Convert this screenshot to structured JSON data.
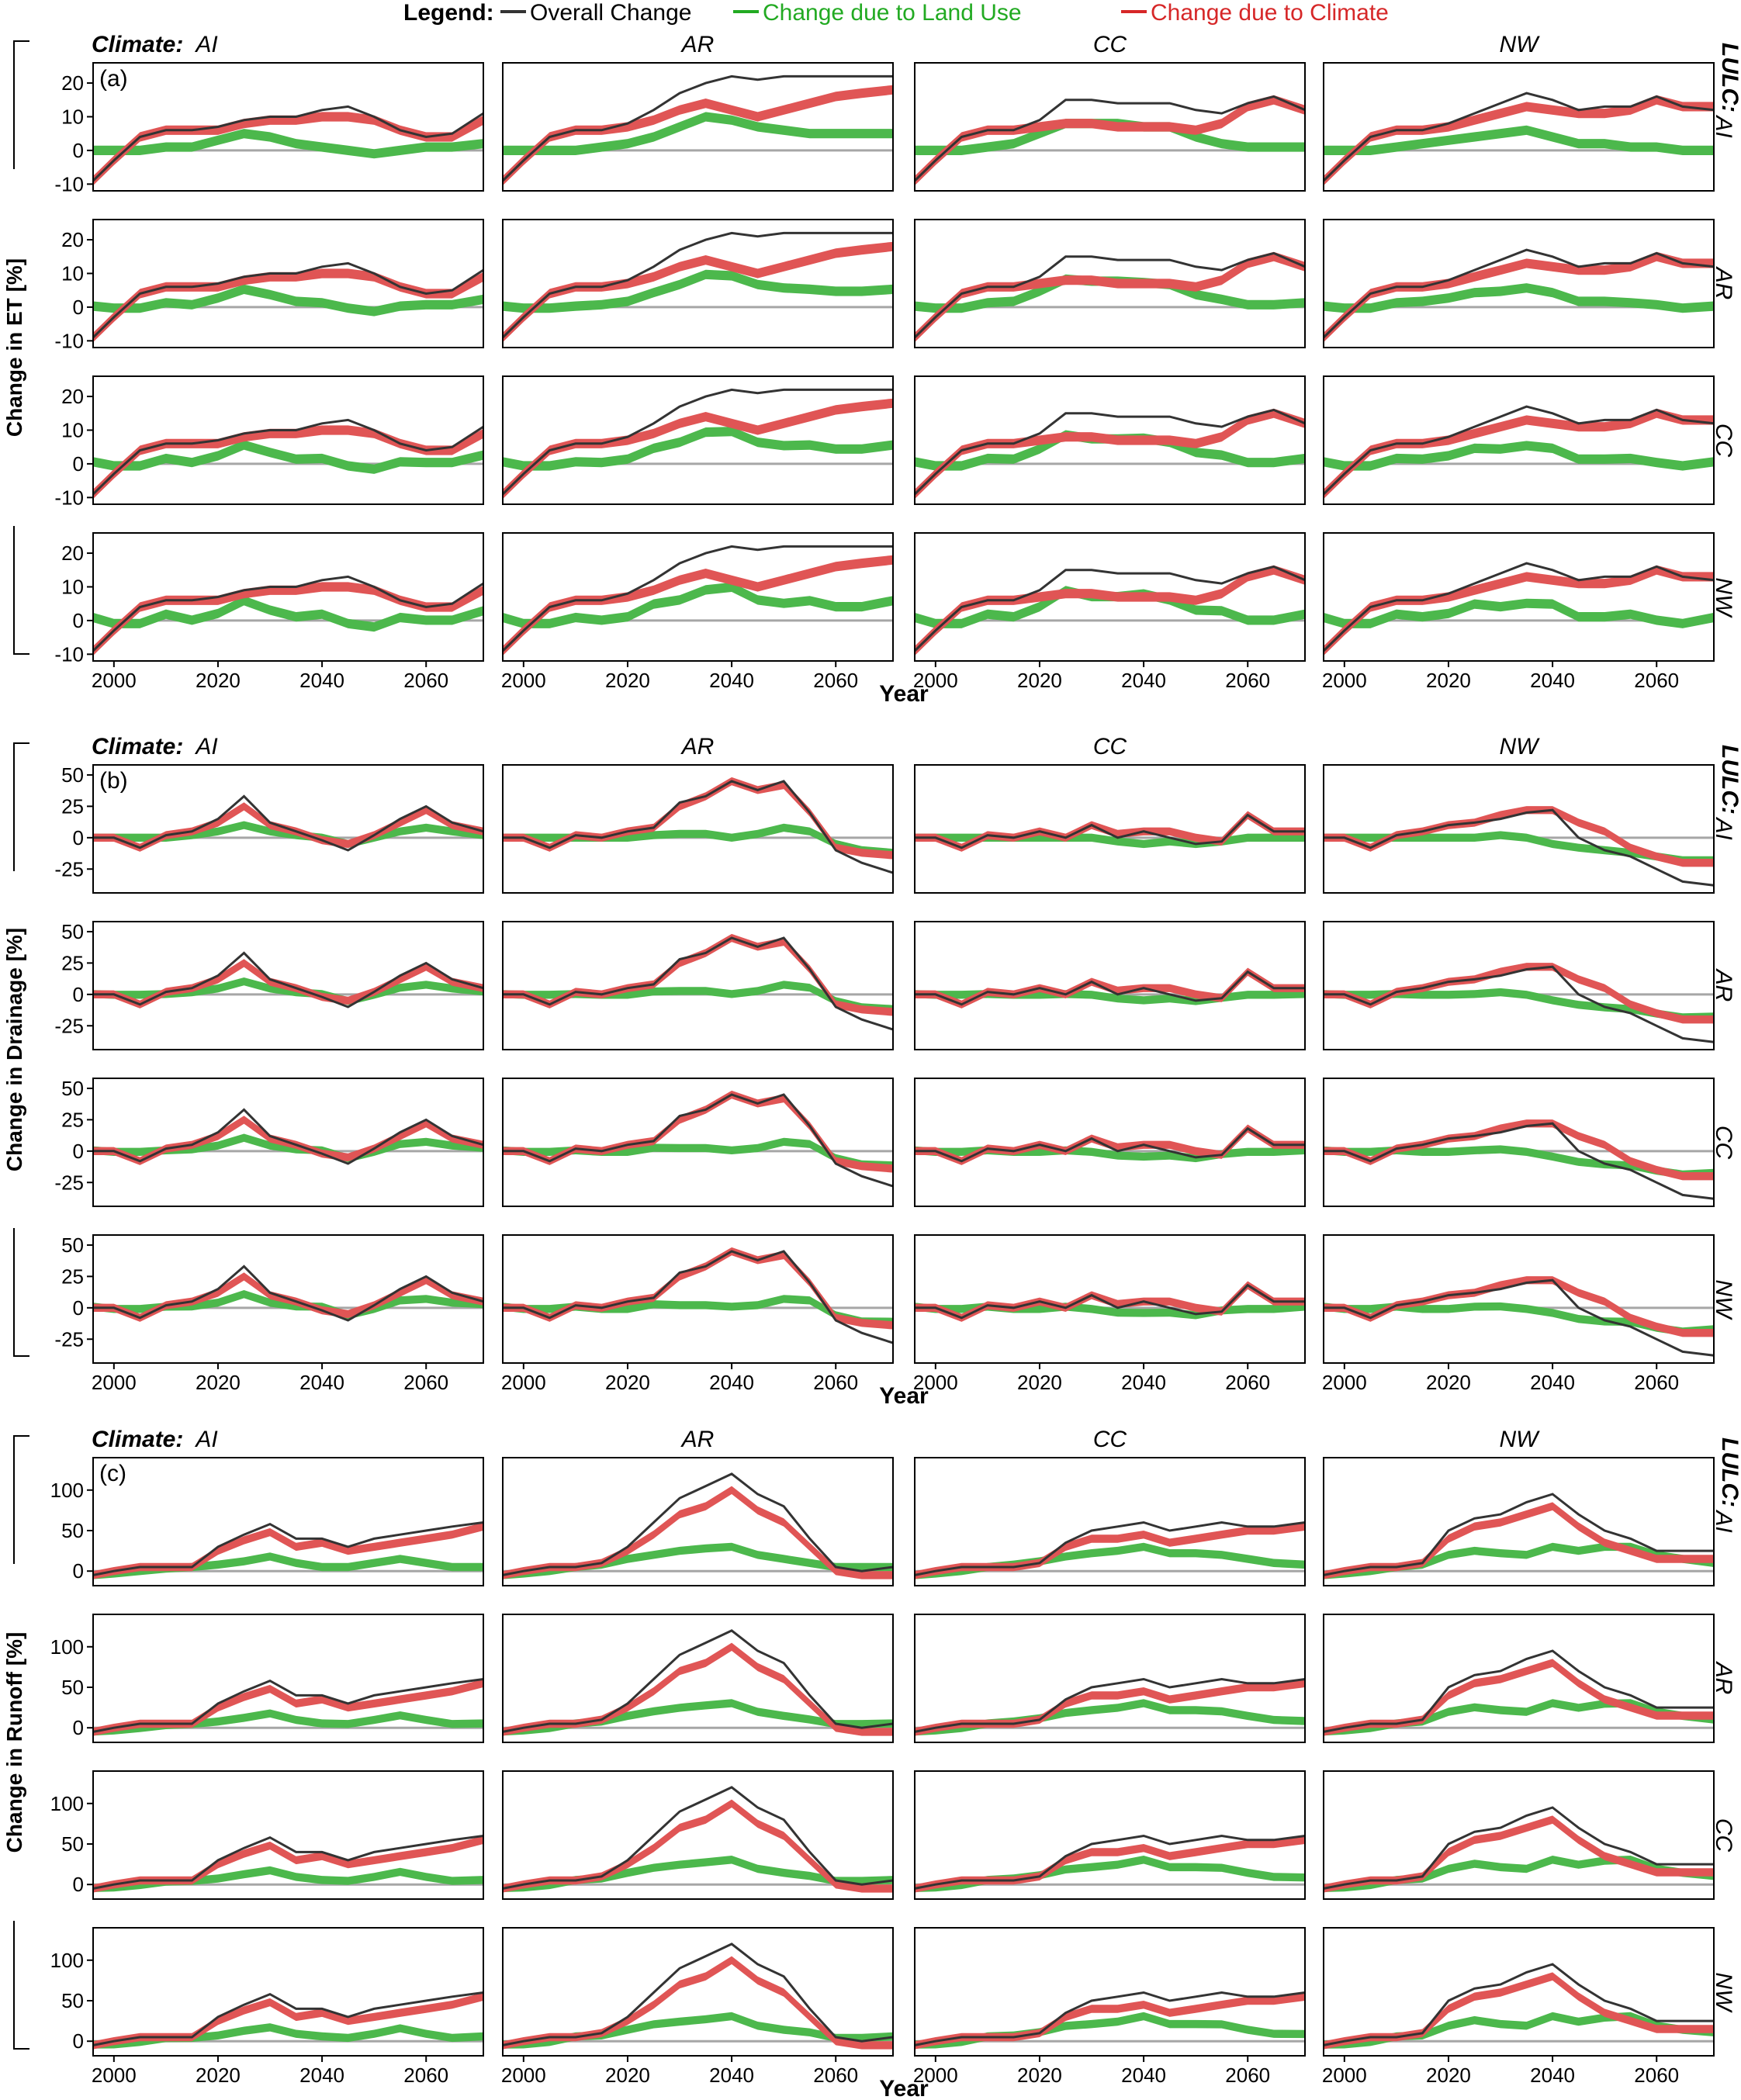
{
  "legend": {
    "title": "Legend:",
    "items": [
      {
        "label": "Overall Change",
        "color": "#333333"
      },
      {
        "label": "Change due to Land Use",
        "color": "#22aa22"
      },
      {
        "label": "Change due to Climate",
        "color": "#d62728"
      }
    ],
    "label_colors": [
      "#000000",
      "#22aa22",
      "#d62728"
    ]
  },
  "climate_prefix": "Climate:",
  "lulc_prefix": "LULC:",
  "climate_scenarios": [
    "AI",
    "AR",
    "CC",
    "NW"
  ],
  "lulc_scenarios": [
    "AI",
    "AR",
    "CC",
    "NW"
  ],
  "xlabel": "Year",
  "xticks": [
    2000,
    2020,
    2040,
    2060
  ],
  "xlim": [
    1996,
    2071
  ],
  "colors": {
    "overall": "#333333",
    "landuse": "#4cb84c",
    "climate": "#e05555",
    "zero": "#a6a6a6"
  },
  "chart_data": [
    {
      "type": "line",
      "tag": "(a)",
      "ylabel": "Change in ET [%]",
      "ylim": [
        -12,
        26
      ],
      "yticks": [
        -10,
        0,
        10,
        20
      ],
      "x": [
        1996,
        2000,
        2005,
        2010,
        2015,
        2020,
        2025,
        2030,
        2035,
        2040,
        2045,
        2050,
        2055,
        2060,
        2065,
        2071
      ],
      "overall": {
        "AI": [
          -9,
          -3,
          4,
          6,
          6,
          7,
          9,
          10,
          10,
          12,
          13,
          10,
          6,
          4,
          5,
          11
        ],
        "AR": [
          -9,
          -3,
          4,
          6,
          6,
          8,
          12,
          17,
          20,
          22,
          21,
          22,
          22,
          22,
          22,
          22
        ],
        "CC": [
          -9,
          -3,
          4,
          6,
          6,
          9,
          15,
          15,
          14,
          14,
          14,
          12,
          11,
          14,
          16,
          12
        ],
        "NW": [
          -9,
          -3,
          4,
          6,
          6,
          8,
          11,
          14,
          17,
          15,
          12,
          13,
          13,
          16,
          13,
          12
        ]
      },
      "climate": {
        "AI": [
          -9,
          -3,
          4,
          6,
          6,
          6,
          8,
          9,
          9,
          10,
          10,
          9,
          6,
          4,
          4,
          9
        ],
        "AR": [
          -9,
          -3,
          4,
          6,
          6,
          7,
          9,
          12,
          14,
          12,
          10,
          12,
          14,
          16,
          17,
          18
        ],
        "CC": [
          -9,
          -3,
          4,
          6,
          6,
          7,
          8,
          8,
          7,
          7,
          7,
          6,
          8,
          13,
          15,
          12
        ],
        "NW": [
          -9,
          -3,
          4,
          6,
          6,
          7,
          9,
          11,
          13,
          12,
          11,
          11,
          12,
          15,
          13,
          13
        ]
      },
      "landuse": {
        "AI": [
          0,
          0,
          0,
          1,
          1,
          3,
          5,
          4,
          2,
          1,
          0,
          -1,
          0,
          1,
          1,
          2
        ],
        "AR": [
          0,
          0,
          0,
          0,
          1,
          2,
          4,
          7,
          10,
          9,
          7,
          6,
          5,
          5,
          5,
          5
        ],
        "CC": [
          0,
          0,
          0,
          1,
          2,
          5,
          8,
          8,
          8,
          7,
          7,
          4,
          2,
          1,
          1,
          1
        ],
        "NW": [
          0,
          0,
          0,
          1,
          2,
          3,
          4,
          5,
          6,
          4,
          2,
          2,
          1,
          1,
          0,
          0
        ]
      },
      "band_width": 1.4
    },
    {
      "type": "line",
      "tag": "(b)",
      "ylabel": "Change in Drainage [%]",
      "ylim": [
        -44,
        58
      ],
      "yticks": [
        -25,
        0,
        25,
        50
      ],
      "x": [
        1996,
        2000,
        2005,
        2010,
        2015,
        2020,
        2025,
        2030,
        2035,
        2040,
        2045,
        2050,
        2055,
        2060,
        2065,
        2071
      ],
      "overall": {
        "AI": [
          0,
          0,
          -8,
          2,
          5,
          15,
          33,
          12,
          5,
          -2,
          -10,
          2,
          15,
          25,
          12,
          5
        ],
        "AR": [
          0,
          0,
          -8,
          2,
          0,
          5,
          8,
          28,
          33,
          45,
          38,
          45,
          20,
          -10,
          -20,
          -28
        ],
        "CC": [
          0,
          0,
          -8,
          2,
          0,
          5,
          0,
          10,
          0,
          5,
          0,
          -5,
          -3,
          18,
          5,
          5
        ],
        "NW": [
          0,
          0,
          -8,
          2,
          5,
          10,
          12,
          15,
          20,
          22,
          0,
          -10,
          -15,
          -25,
          -35,
          -38
        ]
      },
      "climate": {
        "AI": [
          0,
          0,
          -8,
          2,
          5,
          12,
          25,
          10,
          5,
          -2,
          -5,
          2,
          12,
          22,
          10,
          5
        ],
        "AR": [
          0,
          0,
          -8,
          2,
          0,
          5,
          8,
          25,
          33,
          45,
          38,
          42,
          20,
          -8,
          -12,
          -14
        ],
        "CC": [
          0,
          0,
          -8,
          2,
          0,
          5,
          0,
          10,
          3,
          5,
          5,
          0,
          -3,
          18,
          5,
          5
        ],
        "NW": [
          0,
          0,
          -8,
          2,
          5,
          10,
          12,
          18,
          22,
          22,
          12,
          5,
          -8,
          -15,
          -20,
          -20
        ]
      },
      "landuse": {
        "AI": [
          0,
          0,
          0,
          0,
          2,
          5,
          10,
          5,
          2,
          0,
          -5,
          0,
          5,
          8,
          5,
          2
        ],
        "AR": [
          0,
          0,
          0,
          0,
          0,
          0,
          2,
          3,
          3,
          0,
          3,
          8,
          5,
          -5,
          -10,
          -12
        ],
        "CC": [
          0,
          0,
          0,
          0,
          0,
          0,
          0,
          0,
          -3,
          -5,
          -3,
          -5,
          -3,
          0,
          0,
          0
        ],
        "NW": [
          0,
          0,
          0,
          0,
          0,
          0,
          0,
          2,
          0,
          -5,
          -8,
          -10,
          -12,
          -15,
          -18,
          -18
        ]
      },
      "band_width": 3.2
    },
    {
      "type": "line",
      "tag": "(c)",
      "ylabel": "Change in Runoff [%]",
      "ylim": [
        -18,
        140
      ],
      "yticks": [
        0,
        50,
        100
      ],
      "x": [
        1996,
        2000,
        2005,
        2010,
        2015,
        2020,
        2025,
        2030,
        2035,
        2040,
        2045,
        2050,
        2055,
        2060,
        2065,
        2071
      ],
      "overall": {
        "AI": [
          -5,
          0,
          5,
          5,
          5,
          30,
          45,
          58,
          40,
          40,
          30,
          40,
          45,
          50,
          55,
          60
        ],
        "AR": [
          -5,
          0,
          5,
          5,
          10,
          30,
          60,
          90,
          105,
          120,
          95,
          80,
          40,
          5,
          0,
          5
        ],
        "CC": [
          -5,
          0,
          5,
          5,
          5,
          10,
          35,
          50,
          55,
          60,
          50,
          55,
          60,
          55,
          55,
          60
        ],
        "NW": [
          -5,
          0,
          5,
          5,
          10,
          50,
          65,
          70,
          85,
          95,
          70,
          50,
          40,
          25,
          25,
          25
        ]
      },
      "climate": {
        "AI": [
          -5,
          0,
          5,
          5,
          5,
          25,
          38,
          48,
          30,
          35,
          25,
          30,
          35,
          40,
          45,
          55
        ],
        "AR": [
          -5,
          0,
          5,
          5,
          10,
          25,
          45,
          70,
          80,
          100,
          75,
          60,
          30,
          0,
          -5,
          -5
        ],
        "CC": [
          -5,
          0,
          5,
          5,
          5,
          10,
          30,
          40,
          40,
          45,
          35,
          40,
          45,
          50,
          50,
          55
        ],
        "NW": [
          -5,
          0,
          5,
          5,
          10,
          40,
          55,
          60,
          70,
          80,
          55,
          35,
          25,
          15,
          15,
          15
        ]
      },
      "landuse": {
        "AI": [
          -5,
          -3,
          0,
          3,
          5,
          8,
          12,
          18,
          10,
          5,
          5,
          10,
          15,
          10,
          5,
          5
        ],
        "AR": [
          -5,
          -3,
          0,
          5,
          8,
          15,
          20,
          25,
          28,
          30,
          20,
          15,
          10,
          5,
          5,
          5
        ],
        "CC": [
          -5,
          -3,
          0,
          5,
          8,
          12,
          18,
          22,
          25,
          30,
          22,
          22,
          20,
          15,
          10,
          8
        ],
        "NW": [
          -5,
          -3,
          0,
          5,
          8,
          20,
          25,
          22,
          20,
          30,
          25,
          30,
          30,
          20,
          15,
          10
        ]
      },
      "band_width": 5
    }
  ]
}
